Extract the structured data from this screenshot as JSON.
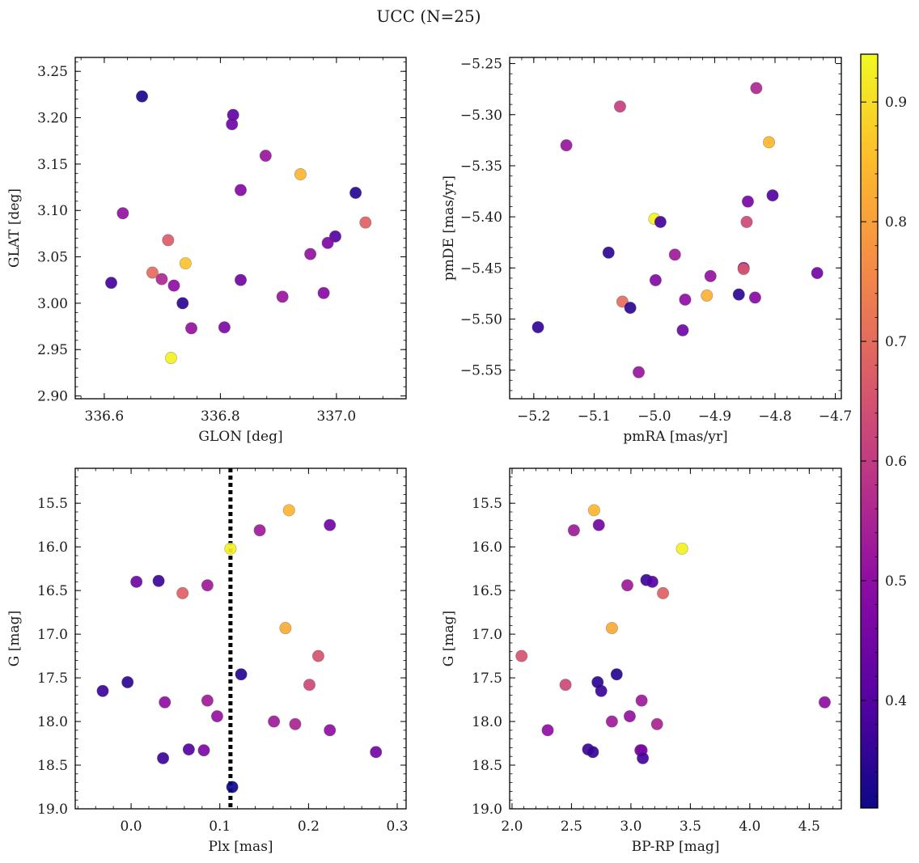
{
  "figure": {
    "suptitle": "UCC (N=25)",
    "colormap": "plasma",
    "colorbar": {
      "min": 0.31,
      "max": 0.94,
      "ticks": [
        "0.4",
        "0.5",
        "0.6",
        "0.7",
        "0.8",
        "0.9"
      ]
    }
  },
  "chart_data": [
    {
      "type": "scatter",
      "xlabel": "GLON [deg]",
      "ylabel": "GLAT [deg]",
      "xlim": [
        336.55,
        337.12
      ],
      "ylim": [
        2.897,
        3.265
      ],
      "xticks": [
        "336.6",
        "336.8",
        "337.0"
      ],
      "yticks": [
        "2.90",
        "2.95",
        "3.00",
        "3.05",
        "3.10",
        "3.15",
        "3.20",
        "3.25"
      ],
      "x": [
        336.665,
        336.822,
        336.82,
        336.878,
        336.938,
        336.835,
        337.033,
        336.632,
        337.05,
        336.71,
        336.998,
        336.985,
        336.955,
        336.683,
        336.74,
        336.699,
        336.72,
        336.835,
        336.735,
        336.907,
        336.978,
        336.612,
        336.75,
        336.807,
        336.715
      ],
      "y": [
        3.223,
        3.203,
        3.193,
        3.159,
        3.139,
        3.122,
        3.119,
        3.097,
        3.087,
        3.068,
        3.072,
        3.065,
        3.053,
        3.033,
        3.043,
        3.026,
        3.019,
        3.025,
        3.0,
        3.007,
        3.011,
        3.022,
        2.973,
        2.974,
        2.941
      ],
      "color_values": [
        0.33,
        0.42,
        0.44,
        0.52,
        0.84,
        0.48,
        0.34,
        0.51,
        0.68,
        0.67,
        0.4,
        0.47,
        0.51,
        0.7,
        0.86,
        0.56,
        0.5,
        0.45,
        0.35,
        0.52,
        0.49,
        0.38,
        0.51,
        0.47,
        0.93
      ]
    },
    {
      "type": "scatter",
      "xlabel": "pmRA [mas/yr]",
      "ylabel": "pmDE [mas/yr]",
      "xlim": [
        -5.24,
        -4.69
      ],
      "ylim": [
        -5.578,
        -5.244
      ],
      "xticks": [
        "−5.2",
        "−5.1",
        "−5.0",
        "−4.9",
        "−4.8",
        "−4.7"
      ],
      "yticks": [
        "−5.25",
        "−5.30",
        "−5.35",
        "−5.40",
        "−5.45",
        "−5.50",
        "−5.55"
      ],
      "x": [
        -4.831,
        -5.057,
        -5.146,
        -4.81,
        -4.804,
        -4.845,
        -5.0,
        -4.99,
        -4.847,
        -5.076,
        -4.966,
        -4.73,
        -4.907,
        -4.852,
        -4.913,
        -4.86,
        -4.833,
        -4.998,
        -5.053,
        -5.04,
        -4.949,
        -5.193,
        -4.953,
        -5.026,
        -4.852
      ],
      "y": [
        -5.274,
        -5.292,
        -5.33,
        -5.327,
        -5.379,
        -5.385,
        -5.402,
        -5.405,
        -5.405,
        -5.435,
        -5.437,
        -5.455,
        -5.458,
        -5.45,
        -5.477,
        -5.476,
        -5.479,
        -5.462,
        -5.483,
        -5.489,
        -5.481,
        -5.508,
        -5.511,
        -5.552,
        -5.451
      ],
      "color_values": [
        0.56,
        0.61,
        0.52,
        0.84,
        0.4,
        0.46,
        0.93,
        0.38,
        0.63,
        0.35,
        0.53,
        0.45,
        0.51,
        0.47,
        0.83,
        0.35,
        0.49,
        0.48,
        0.7,
        0.35,
        0.5,
        0.36,
        0.44,
        0.52,
        0.66
      ]
    },
    {
      "type": "scatter",
      "xlabel": "Plx [mas]",
      "ylabel": "G [mag]",
      "xlim": [
        -0.063,
        0.31
      ],
      "ylim": [
        19.0,
        15.1
      ],
      "y_inverted": true,
      "xticks": [
        "0.0",
        "0.1",
        "0.2",
        "0.3"
      ],
      "yticks": [
        "15.5",
        "16.0",
        "16.5",
        "17.0",
        "17.5",
        "18.0",
        "18.5",
        "19.0"
      ],
      "vline": {
        "x": 0.112,
        "style": "dotted",
        "color": "#000000"
      },
      "x": [
        0.178,
        0.224,
        0.145,
        0.112,
        0.006,
        0.031,
        0.058,
        0.086,
        0.174,
        0.211,
        0.124,
        0.201,
        -0.032,
        -0.004,
        0.038,
        0.086,
        0.097,
        0.161,
        0.185,
        0.224,
        0.036,
        0.065,
        0.082,
        0.276,
        0.114
      ],
      "y": [
        15.58,
        15.75,
        15.81,
        16.02,
        16.4,
        16.39,
        16.53,
        16.44,
        16.93,
        17.25,
        17.46,
        17.58,
        17.65,
        17.55,
        17.78,
        17.76,
        17.94,
        18.0,
        18.03,
        18.1,
        18.42,
        18.32,
        18.33,
        18.35,
        18.75
      ],
      "color_values": [
        0.84,
        0.45,
        0.53,
        0.93,
        0.44,
        0.37,
        0.68,
        0.53,
        0.82,
        0.65,
        0.34,
        0.63,
        0.37,
        0.35,
        0.5,
        0.53,
        0.51,
        0.53,
        0.55,
        0.5,
        0.37,
        0.4,
        0.47,
        0.45,
        0.31
      ]
    },
    {
      "type": "scatter",
      "xlabel": "BP-RP [mag]",
      "ylabel": "G [mag]",
      "xlim": [
        1.98,
        4.77
      ],
      "ylim": [
        19.0,
        15.1
      ],
      "y_inverted": true,
      "xticks": [
        "2.0",
        "2.5",
        "3.0",
        "3.5",
        "4.0",
        "4.5"
      ],
      "yticks": [
        "15.5",
        "16.0",
        "16.5",
        "17.0",
        "17.5",
        "18.0",
        "18.5",
        "19.0"
      ],
      "x": [
        2.69,
        2.73,
        2.52,
        3.43,
        3.13,
        3.18,
        2.97,
        3.27,
        2.84,
        2.08,
        2.88,
        2.45,
        2.75,
        2.72,
        3.09,
        4.63,
        2.99,
        2.84,
        3.22,
        2.3,
        3.08,
        2.64,
        2.68,
        3.09,
        3.1
      ],
      "y": [
        15.58,
        15.75,
        15.81,
        16.02,
        16.38,
        16.4,
        16.44,
        16.53,
        16.93,
        17.25,
        17.46,
        17.58,
        17.65,
        17.55,
        17.76,
        17.78,
        17.94,
        18.0,
        18.03,
        18.1,
        18.33,
        18.32,
        18.35,
        18.33,
        18.42
      ],
      "color_values": [
        0.84,
        0.45,
        0.53,
        0.93,
        0.37,
        0.4,
        0.53,
        0.68,
        0.82,
        0.65,
        0.34,
        0.63,
        0.37,
        0.35,
        0.53,
        0.5,
        0.51,
        0.53,
        0.55,
        0.5,
        0.47,
        0.37,
        0.36,
        0.47,
        0.38
      ]
    }
  ]
}
